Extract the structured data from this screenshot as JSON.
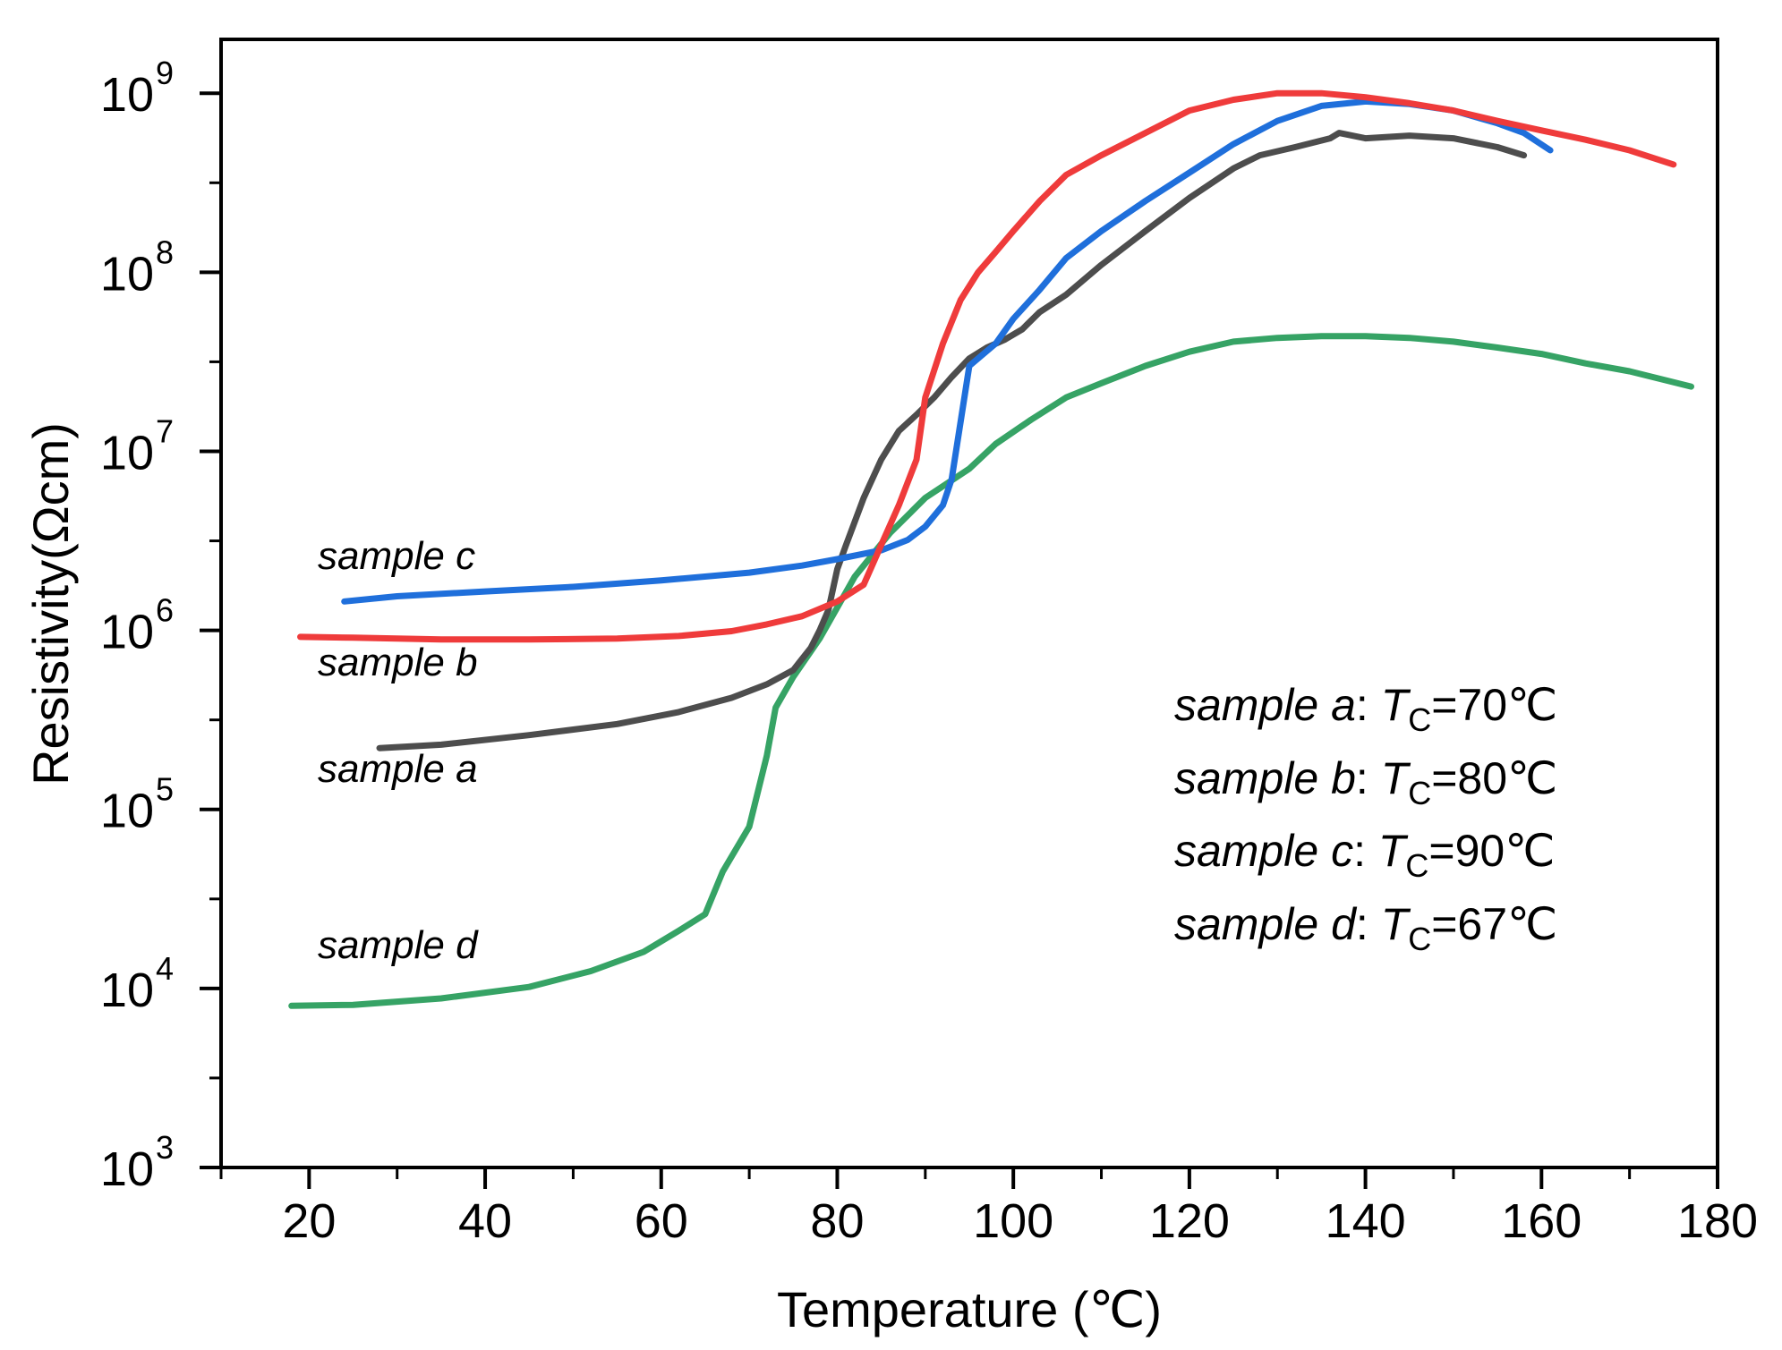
{
  "chart_data": {
    "type": "line",
    "xlabel": "Temperature (℃)",
    "ylabel": "Resistivity(Ωcm)",
    "x_scale": "linear",
    "y_scale": "log",
    "xlim": [
      10,
      180
    ],
    "ylim": [
      1000,
      2000000000
    ],
    "x_ticks": [
      20,
      40,
      60,
      80,
      100,
      120,
      140,
      160,
      180
    ],
    "x_tick_labels": [
      "20",
      "40",
      "60",
      "80",
      "100",
      "120",
      "140",
      "160",
      "180"
    ],
    "y_ticks": [
      1000,
      10000,
      100000,
      1000000,
      10000000,
      100000000,
      1000000000
    ],
    "y_tick_labels": [
      {
        "base": "10",
        "exp": "3"
      },
      {
        "base": "10",
        "exp": "4"
      },
      {
        "base": "10",
        "exp": "5"
      },
      {
        "base": "10",
        "exp": "6"
      },
      {
        "base": "10",
        "exp": "7"
      },
      {
        "base": "10",
        "exp": "8"
      },
      {
        "base": "10",
        "exp": "9"
      }
    ],
    "series": [
      {
        "name": "sample a",
        "label": "sample a",
        "color": "#4d4d4d",
        "x": [
          28,
          35,
          45,
          55,
          62,
          68,
          72,
          75,
          77,
          78,
          79,
          80,
          81,
          83,
          85,
          87,
          89,
          91,
          93,
          95,
          97,
          99,
          101,
          103,
          106,
          110,
          115,
          120,
          125,
          128,
          132,
          136,
          137,
          140,
          145,
          150,
          155,
          158
        ],
        "y": [
          220000,
          230000,
          260000,
          300000,
          350000,
          420000,
          500000,
          600000,
          800000,
          1000000,
          1300000,
          2200000,
          3000000,
          5500000,
          9000000,
          13000000,
          16000000,
          20000000,
          26000000,
          33000000,
          38000000,
          42000000,
          48000000,
          60000000,
          75000000,
          110000000,
          170000000,
          260000000,
          380000000,
          450000000,
          500000000,
          560000000,
          600000000,
          560000000,
          580000000,
          560000000,
          500000000,
          450000000
        ]
      },
      {
        "name": "sample b",
        "label": "sample b",
        "color": "#ef3b3b",
        "x": [
          19,
          25,
          35,
          45,
          55,
          62,
          68,
          72,
          76,
          80,
          83,
          85,
          87,
          89,
          90,
          92,
          94,
          96,
          98,
          100,
          103,
          106,
          110,
          115,
          120,
          125,
          130,
          135,
          140,
          145,
          150,
          155,
          160,
          165,
          170,
          175
        ],
        "y": [
          920000,
          910000,
          890000,
          890000,
          900000,
          930000,
          990000,
          1080000,
          1200000,
          1450000,
          1800000,
          3000000,
          5000000,
          9000000,
          20000000,
          40000000,
          70000000,
          100000000,
          130000000,
          170000000,
          250000000,
          350000000,
          450000000,
          600000000,
          800000000,
          920000000,
          1000000000,
          1000000000,
          950000000,
          880000000,
          800000000,
          700000000,
          620000000,
          550000000,
          480000000,
          400000000
        ]
      },
      {
        "name": "sample c",
        "label": "sample c",
        "color": "#1f6fdb",
        "x": [
          24,
          30,
          40,
          50,
          60,
          70,
          76,
          80,
          85,
          88,
          90,
          92,
          93,
          95,
          98,
          100,
          103,
          106,
          110,
          115,
          120,
          125,
          130,
          135,
          140,
          145,
          150,
          155,
          158,
          161
        ],
        "y": [
          1450000,
          1550000,
          1650000,
          1750000,
          1900000,
          2100000,
          2300000,
          2500000,
          2800000,
          3200000,
          3800000,
          5000000,
          7000000,
          30000000,
          40000000,
          55000000,
          80000000,
          120000000,
          170000000,
          250000000,
          360000000,
          520000000,
          700000000,
          850000000,
          900000000,
          870000000,
          800000000,
          680000000,
          600000000,
          480000000
        ]
      },
      {
        "name": "sample d",
        "label": "sample d",
        "color": "#36a365",
        "x": [
          18,
          25,
          35,
          45,
          52,
          58,
          62,
          65,
          67,
          70,
          72,
          73,
          75,
          78,
          82,
          86,
          90,
          95,
          98,
          102,
          106,
          110,
          115,
          120,
          125,
          130,
          135,
          140,
          145,
          150,
          155,
          160,
          165,
          170,
          177
        ],
        "y": [
          8000,
          8100,
          8800,
          10200,
          12500,
          16000,
          21000,
          26000,
          45000,
          80000,
          200000,
          370000,
          550000,
          900000,
          2000000,
          3500000,
          5500000,
          8000000,
          11000000,
          15000000,
          20000000,
          24000000,
          30000000,
          36000000,
          41000000,
          43000000,
          44000000,
          44000000,
          43000000,
          41000000,
          38000000,
          35000000,
          31000000,
          28000000,
          23000000
        ]
      }
    ],
    "legend": {
      "position": "right",
      "entries": [
        {
          "sample": "sample a",
          "tc_symbol": "T",
          "tc_sub": "C",
          "tc_value": "=70℃"
        },
        {
          "sample": "sample b",
          "tc_symbol": "T",
          "tc_sub": "C",
          "tc_value": "=80℃"
        },
        {
          "sample": "sample c",
          "tc_symbol": "T",
          "tc_sub": "C",
          "tc_value": "=90℃"
        },
        {
          "sample": "sample d",
          "tc_symbol": "T",
          "tc_sub": "C",
          "tc_value": "=67℃"
        }
      ]
    }
  }
}
